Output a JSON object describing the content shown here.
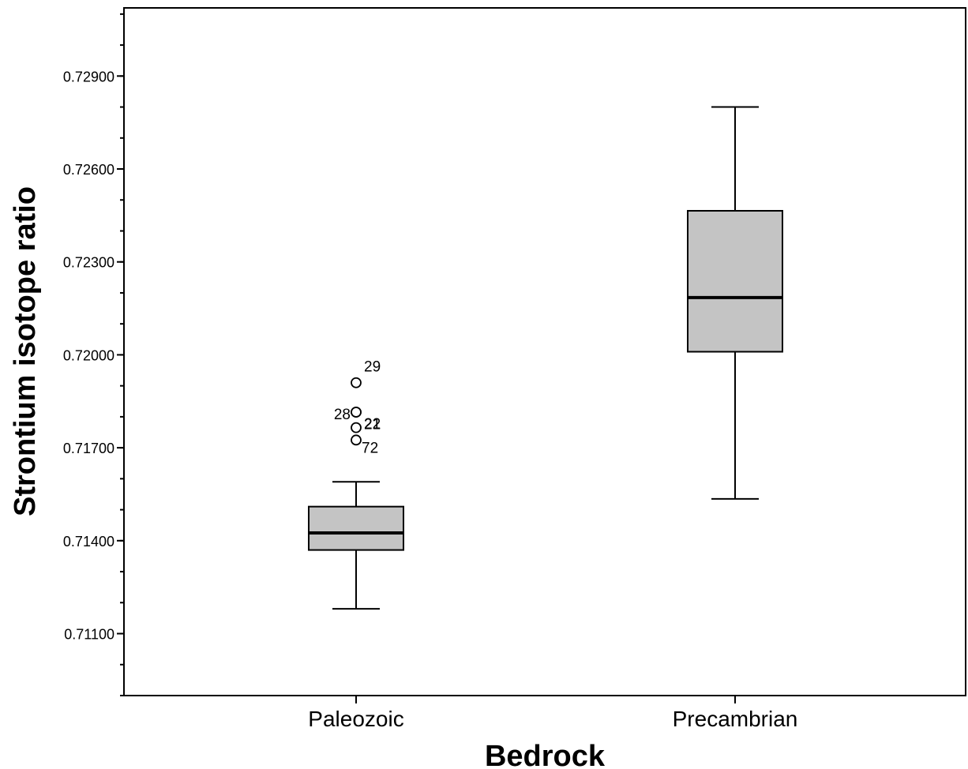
{
  "chart_data": {
    "type": "box",
    "xlabel": "Bedrock",
    "ylabel": "Strontium isotope ratio",
    "ylim": [
      0.709,
      0.7312
    ],
    "y_ticks": [
      "0.71100",
      "0.71400",
      "0.71700",
      "0.72000",
      "0.72300",
      "0.72600",
      "0.72900"
    ],
    "y_tick_values": [
      0.711,
      0.714,
      0.717,
      0.72,
      0.723,
      0.726,
      0.729
    ],
    "minor_tick_step": 0.001,
    "grid": false,
    "legend": "none",
    "box_fill": "#c4c4c4",
    "categories": [
      "Paleozoic",
      "Precambrian"
    ],
    "boxes": [
      {
        "category": "Paleozoic",
        "whisker_low": 0.7118,
        "q1": 0.7137,
        "median": 0.71425,
        "q3": 0.7151,
        "whisker_high": 0.7159,
        "outliers": [
          {
            "label": "29",
            "value": 0.7191
          },
          {
            "label": "22",
            "value": 0.71815
          },
          {
            "label": "28",
            "value": 0.71815
          },
          {
            "label": "21",
            "value": 0.71765
          },
          {
            "label": "72",
            "value": 0.71725
          }
        ]
      },
      {
        "category": "Precambrian",
        "whisker_low": 0.71535,
        "q1": 0.7201,
        "median": 0.72185,
        "q3": 0.72465,
        "whisker_high": 0.728
      }
    ]
  }
}
